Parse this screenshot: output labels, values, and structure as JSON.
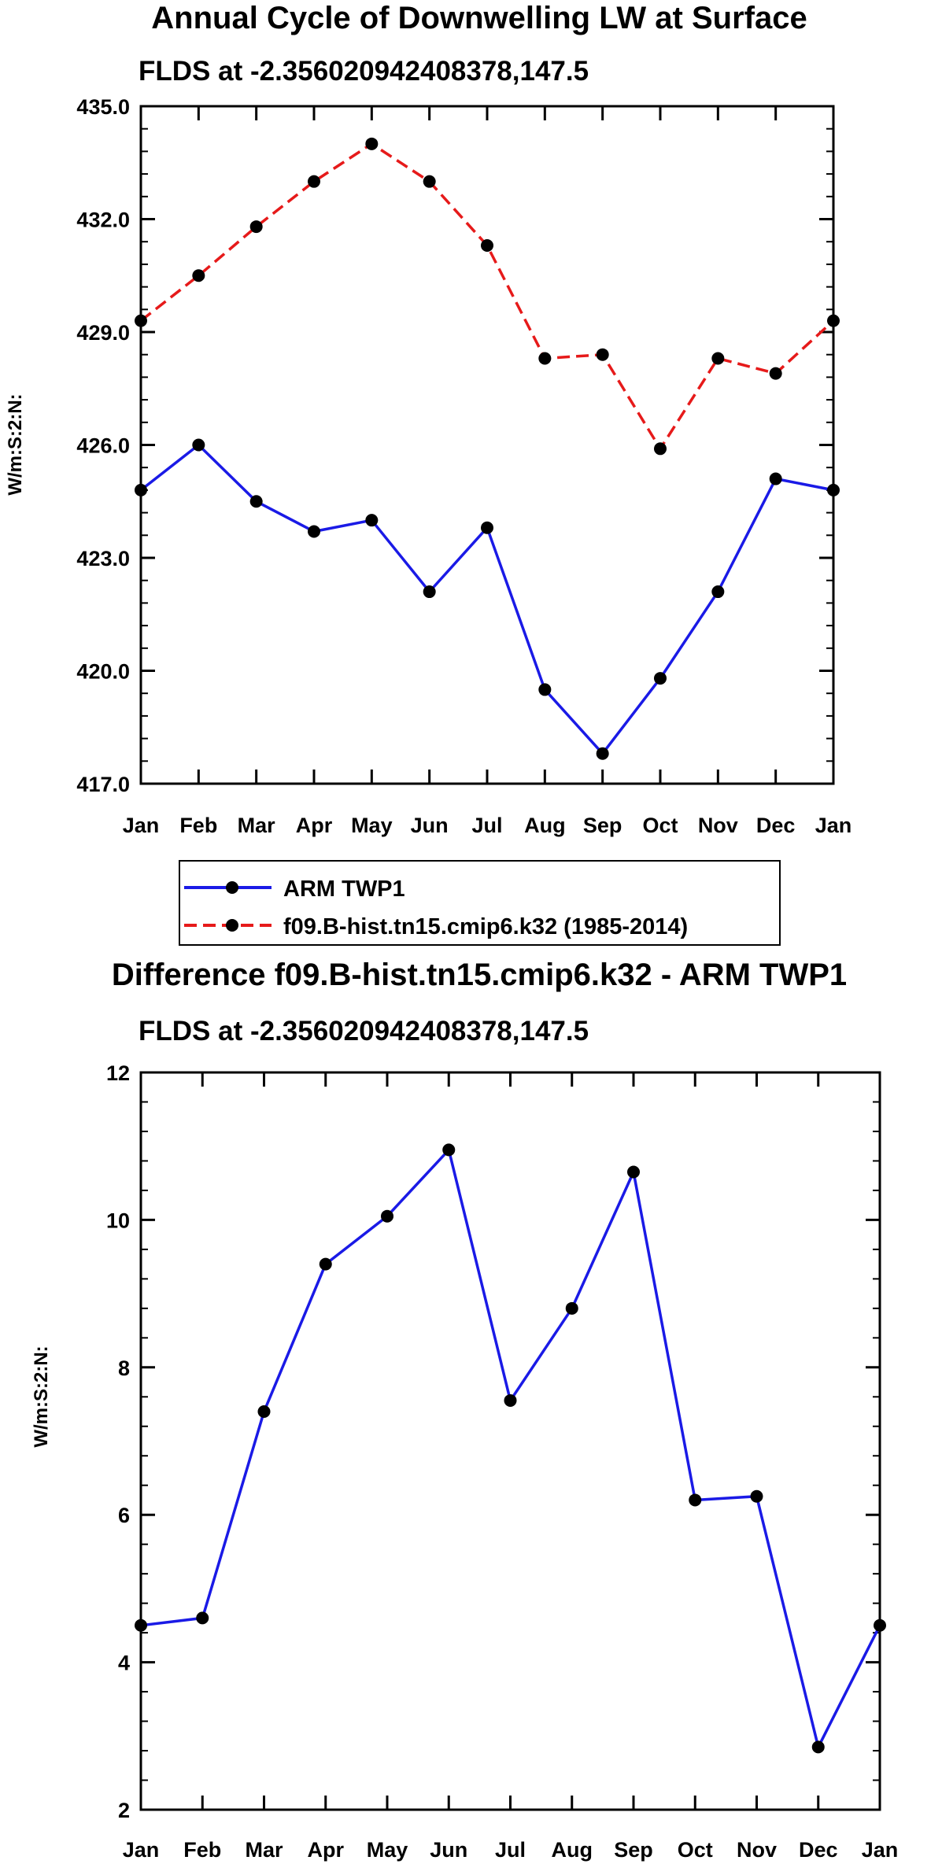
{
  "chart_data": [
    {
      "type": "line",
      "title": "Annual Cycle of Downwelling LW at Surface",
      "subtitle": "FLDS at -2.356020942408378,147.5",
      "xlabel": "",
      "ylabel": "W/m:S:2:N:",
      "categories": [
        "Jan",
        "Feb",
        "Mar",
        "Apr",
        "May",
        "Jun",
        "Jul",
        "Aug",
        "Sep",
        "Oct",
        "Nov",
        "Dec",
        "Jan"
      ],
      "ylim": [
        417.0,
        435.0
      ],
      "yticks": [
        417.0,
        420.0,
        423.0,
        426.0,
        429.0,
        432.0,
        435.0
      ],
      "ytick_labels": [
        "417.0",
        "420.0",
        "423.0",
        "426.0",
        "429.0",
        "432.0",
        "435.0"
      ],
      "series": [
        {
          "name": "ARM TWP1",
          "color": "#1a1ae6",
          "dash": "solid",
          "values": [
            424.8,
            426.0,
            424.5,
            423.7,
            424.0,
            422.1,
            423.8,
            419.5,
            417.8,
            419.8,
            422.1,
            425.1,
            424.8
          ]
        },
        {
          "name": "f09.B-hist.tn15.cmip6.k32 (1985-2014)",
          "color": "#e61a1a",
          "dash": "dashed",
          "values": [
            429.3,
            430.5,
            431.8,
            433.0,
            434.0,
            433.0,
            431.3,
            428.3,
            428.4,
            425.9,
            428.3,
            427.9,
            429.3
          ]
        }
      ],
      "legend": "below"
    },
    {
      "type": "line",
      "title": "Difference f09.B-hist.tn15.cmip6.k32 - ARM TWP1",
      "subtitle": "FLDS at -2.356020942408378,147.5",
      "xlabel": "",
      "ylabel": "W/m:S:2:N:",
      "categories": [
        "Jan",
        "Feb",
        "Mar",
        "Apr",
        "May",
        "Jun",
        "Jul",
        "Aug",
        "Sep",
        "Oct",
        "Nov",
        "Dec",
        "Jan"
      ],
      "ylim": [
        2,
        12
      ],
      "yticks": [
        2,
        4,
        6,
        8,
        10,
        12
      ],
      "ytick_labels": [
        "2",
        "4",
        "6",
        "8",
        "10",
        "12"
      ],
      "series": [
        {
          "name": "Difference",
          "color": "#1a1ae6",
          "dash": "solid",
          "values": [
            4.5,
            4.6,
            7.4,
            9.4,
            10.05,
            10.95,
            7.55,
            8.8,
            10.65,
            6.2,
            6.25,
            2.85,
            4.5
          ]
        }
      ]
    }
  ]
}
